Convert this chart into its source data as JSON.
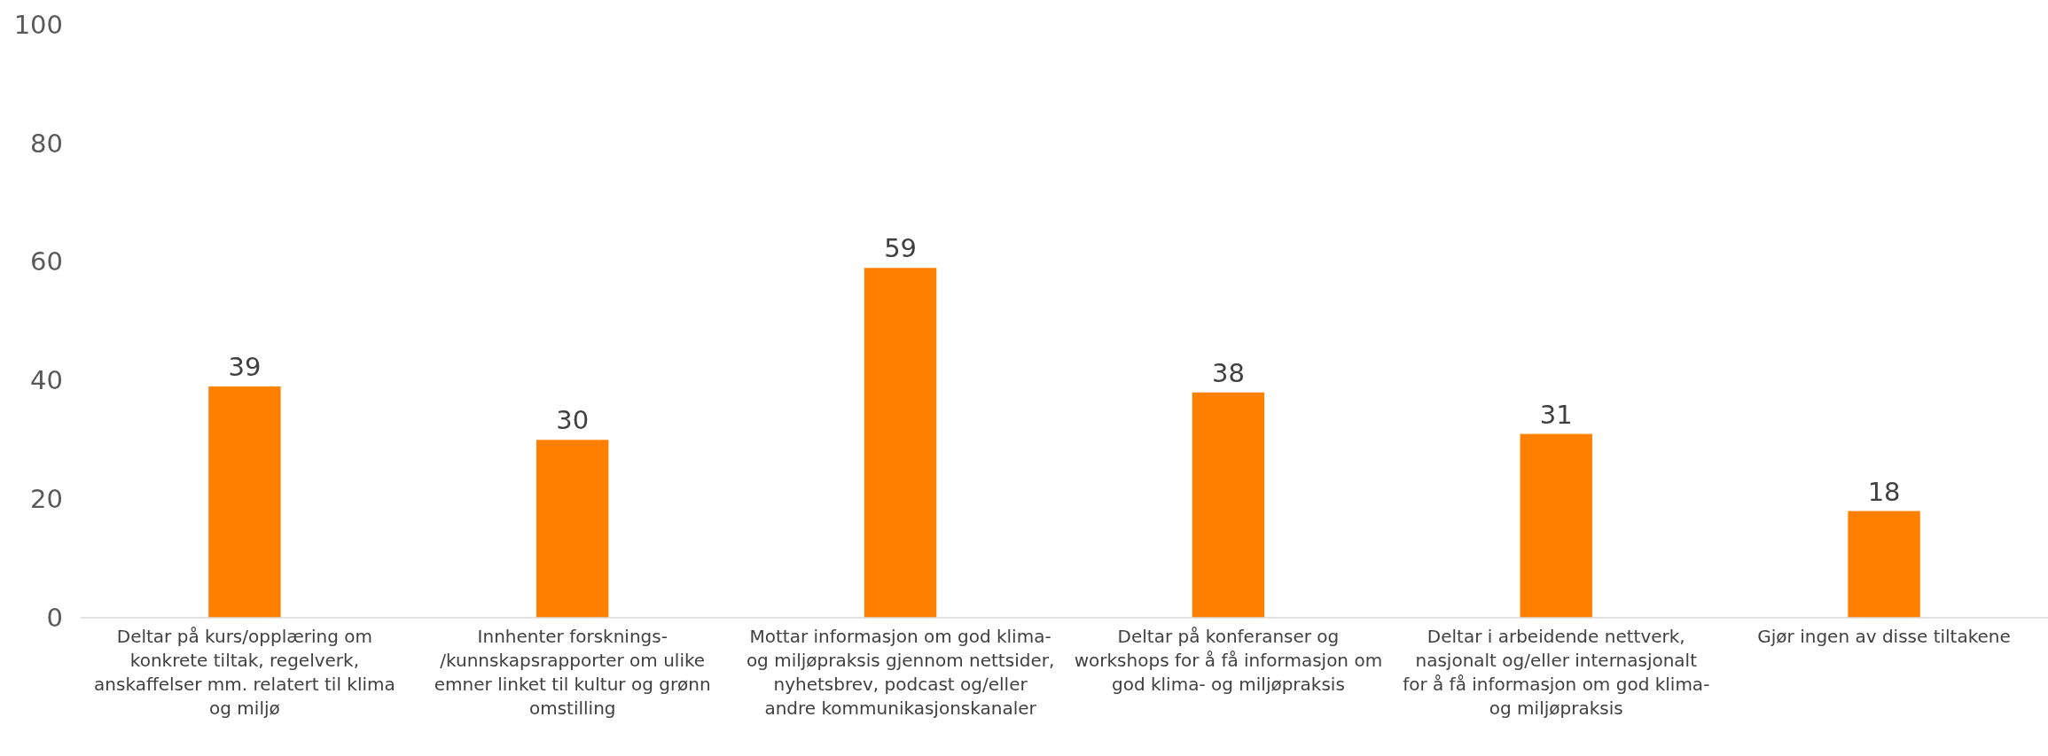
{
  "chart_data": {
    "type": "bar",
    "categories": [
      "Deltar på kurs/opplæring om konkrete tiltak, regelverk, anskaffelser mm. relatert til klima og miljø",
      "Innhenter forsknings- /kunnskapsrapporter om ulike emner linket til kultur og grønn omstilling",
      "Mottar informasjon om god klima- og miljøpraksis gjennom nettsider, nyhetsbrev, podcast og/eller andre kommunikasjonskanaler",
      "Deltar på konferanser og workshops for å få informasjon om god klima- og miljøpraksis",
      "Deltar i arbeidende nettverk, nasjonalt og/eller internasjonalt for å få informasjon om god klima- og miljøpraksis",
      "Gjør ingen av disse tiltakene"
    ],
    "values": [
      39,
      30,
      59,
      38,
      31,
      18
    ],
    "color": "#ff7f00",
    "ylim": [
      0,
      100
    ],
    "yticks": [
      0,
      20,
      40,
      60,
      80,
      100
    ],
    "grid": false,
    "data_labels": true
  }
}
